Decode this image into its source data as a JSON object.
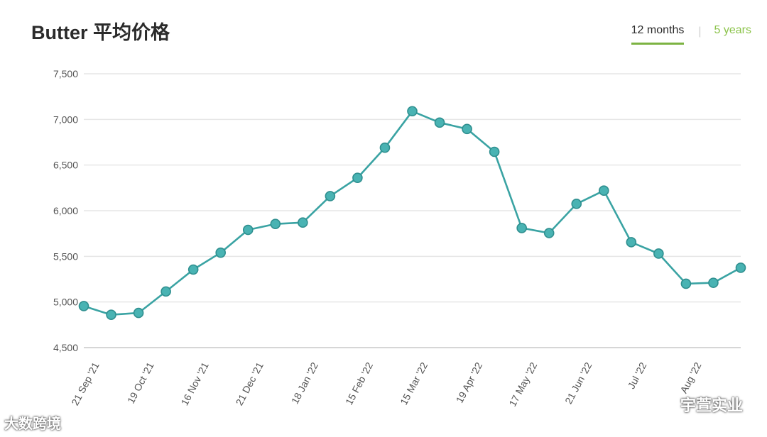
{
  "header": {
    "title": "Butter 平均价格",
    "tabs": [
      {
        "label": "12 months",
        "active": true
      },
      {
        "label": "5 years",
        "active": false
      }
    ],
    "separator": "|"
  },
  "chart_data": {
    "type": "line",
    "title": "Butter 平均价格",
    "xlabel": "",
    "ylabel": "",
    "ylim": [
      4500,
      7500
    ],
    "yticks": [
      4500,
      5000,
      5500,
      6000,
      6500,
      7000,
      7500
    ],
    "ytick_labels": [
      "4,500",
      "5,000",
      "5,500",
      "6,000",
      "6,500",
      "7,000",
      "7,500"
    ],
    "x_tick_labels": [
      "21 Sep '21",
      "19 Oct '21",
      "16 Nov '21",
      "21 Dec '21",
      "18 Jan '22",
      "15 Feb '22",
      "15 Mar '22",
      "19 Apr '22",
      "17 May '22",
      "21 Jun '22",
      "Jul '22",
      "Aug '22"
    ],
    "grid": true,
    "color": "#3aa3a3",
    "marker_fill": "#49b3b3",
    "series": [
      {
        "values": [
          4955,
          4860,
          4880,
          5115,
          5355,
          5540,
          5790,
          5855,
          5870,
          6160,
          6360,
          6690,
          7090,
          6965,
          6895,
          6645,
          5810,
          5755,
          6075,
          6220,
          5655,
          5530,
          5200,
          5210,
          5375
        ]
      }
    ]
  },
  "watermarks": {
    "left": "大数跨境",
    "right": "宇萱实业"
  }
}
